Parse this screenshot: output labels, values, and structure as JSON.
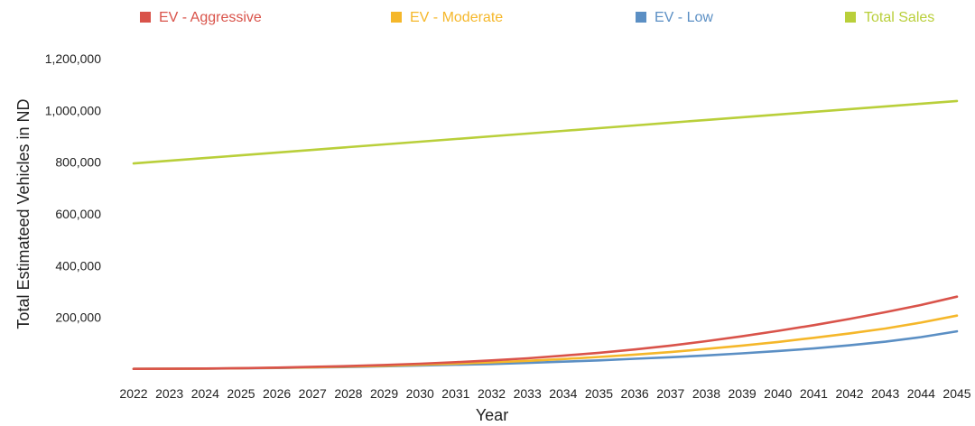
{
  "chart_data": {
    "type": "line",
    "title": "",
    "xlabel": "Year",
    "ylabel": "Total Estimateed Vehicles in ND",
    "categories": [
      "2022",
      "2023",
      "2024",
      "2025",
      "2026",
      "2027",
      "2028",
      "2029",
      "2030",
      "2031",
      "2032",
      "2033",
      "2034",
      "2035",
      "2036",
      "2037",
      "2038",
      "2039",
      "2040",
      "2041",
      "2042",
      "2043",
      "2044",
      "2045"
    ],
    "ylim": [
      0,
      1200000
    ],
    "yticks": [
      200000,
      400000,
      600000,
      800000,
      1000000,
      1200000
    ],
    "ytick_labels": [
      "200,000",
      "400,000",
      "600,000",
      "800,000",
      "1,000,000",
      "1,200,000"
    ],
    "grid": false,
    "legend_position": "top",
    "series": [
      {
        "name": "EV - Aggressive",
        "color": "#d9534a",
        "values": [
          1000,
          1500,
          2500,
          4000,
          6000,
          9000,
          12000,
          16000,
          21000,
          27000,
          34000,
          42000,
          52000,
          63000,
          76000,
          91000,
          108000,
          127000,
          148000,
          170000,
          194000,
          220000,
          248000,
          280000
        ]
      },
      {
        "name": "EV - Moderate",
        "color": "#f5b72a",
        "values": [
          1000,
          1400,
          2200,
          3500,
          5200,
          7500,
          10000,
          13000,
          17000,
          21000,
          26000,
          32000,
          39000,
          47000,
          56000,
          66000,
          78000,
          91000,
          105000,
          121000,
          138000,
          157000,
          180000,
          207000
        ]
      },
      {
        "name": "EV - Low",
        "color": "#5b8fc4",
        "values": [
          1000,
          1300,
          2000,
          3000,
          4500,
          6500,
          8500,
          11000,
          14000,
          17000,
          20000,
          24000,
          29000,
          34000,
          40000,
          46000,
          53000,
          61000,
          70000,
          80000,
          92000,
          106000,
          124000,
          146000
        ]
      },
      {
        "name": "Total Sales",
        "color": "#b9cf3a",
        "values": [
          795000,
          805500,
          816000,
          826500,
          837000,
          847500,
          858000,
          868500,
          879000,
          889500,
          900000,
          910500,
          921000,
          931500,
          942000,
          952500,
          963000,
          973500,
          984000,
          994500,
          1005000,
          1015500,
          1026000,
          1036500
        ]
      }
    ]
  }
}
